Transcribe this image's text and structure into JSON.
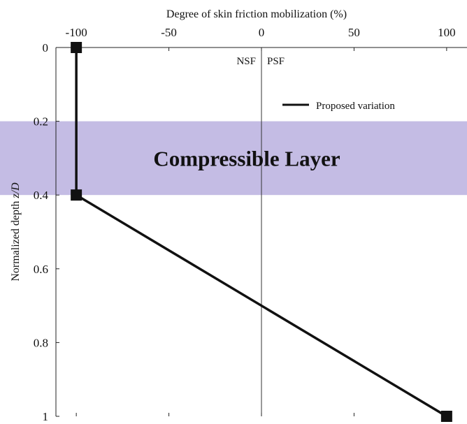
{
  "chart_data": {
    "type": "line",
    "xlabel": "Degree of skin friction mobilization (%)",
    "ylabel_prefix": "Normalized depth ",
    "ylabel_var": "z/D",
    "x_axis_position": "top",
    "y_axis_inverted": true,
    "xlim": [
      -111,
      111
    ],
    "ylim": [
      0,
      1
    ],
    "x_ticks": [
      "-100",
      "-50",
      "0",
      "50",
      "100"
    ],
    "x_tick_values": [
      -100,
      -50,
      0,
      50,
      100
    ],
    "y_ticks": [
      "0",
      "0.2",
      "0.4",
      "0.6",
      "0.8",
      "1"
    ],
    "y_tick_values": [
      0,
      0.2,
      0.4,
      0.6,
      0.8,
      1
    ],
    "grid": false,
    "series": [
      {
        "name": "Proposed variation",
        "color": "#111111",
        "marker": "square",
        "x": [
          -100,
          -100,
          100
        ],
        "y": [
          0,
          0.4,
          1
        ]
      }
    ],
    "shaded_band": {
      "label": "Compressible Layer",
      "y_from": 0.2,
      "y_to": 0.4,
      "color": "#c4bce4"
    },
    "vertical_reference": {
      "x": 0
    },
    "annotations": [
      "NSF",
      "PSF"
    ],
    "legend_position": "top-right"
  }
}
